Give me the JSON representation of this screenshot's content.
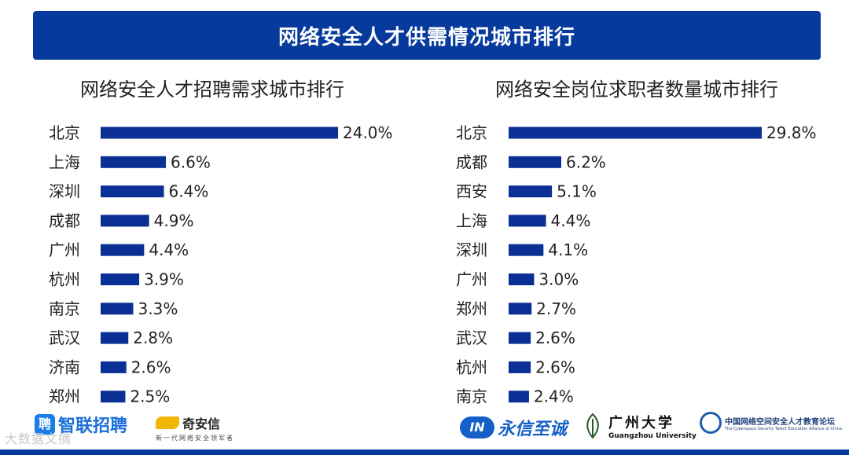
{
  "banner_title": "网络安全人才供需情况城市排行",
  "colors": {
    "bar": "#0a2f95",
    "banner": "#063a9c",
    "text": "#222222"
  },
  "chart_data": [
    {
      "type": "bar",
      "orientation": "horizontal",
      "title": "网络安全人才招聘需求城市排行",
      "categories": [
        "北京",
        "上海",
        "深圳",
        "成都",
        "广州",
        "杭州",
        "南京",
        "武汉",
        "济南",
        "郑州"
      ],
      "values": [
        24.0,
        6.6,
        6.4,
        4.9,
        4.4,
        3.9,
        3.3,
        2.8,
        2.6,
        2.5
      ],
      "value_labels": [
        "24.0%",
        "6.6%",
        "6.4%",
        "4.9%",
        "4.4%",
        "3.9%",
        "3.3%",
        "2.8%",
        "2.6%",
        "2.5%"
      ],
      "xlim": [
        0,
        24.0
      ],
      "grid": false
    },
    {
      "type": "bar",
      "orientation": "horizontal",
      "title": "网络安全岗位求职者数量城市排行",
      "categories": [
        "北京",
        "成都",
        "西安",
        "上海",
        "深圳",
        "广州",
        "郑州",
        "武汉",
        "杭州",
        "南京"
      ],
      "values": [
        29.8,
        6.2,
        5.1,
        4.4,
        4.1,
        3.0,
        2.7,
        2.6,
        2.6,
        2.4
      ],
      "value_labels": [
        "29.8%",
        "6.2%",
        "5.1%",
        "4.4%",
        "4.1%",
        "3.0%",
        "2.7%",
        "2.6%",
        "2.6%",
        "2.4%"
      ],
      "xlim": [
        0,
        29.8
      ],
      "grid": false
    }
  ],
  "logos": {
    "zhaopin": {
      "badge": "聘",
      "name": "智联招聘"
    },
    "qianxin": {
      "mark": "奇安信",
      "tagline": "新一代网络安全领军者"
    },
    "yongxin": {
      "badge": "IN",
      "name": "永信至诚"
    },
    "gzhu": {
      "name": "广州大学",
      "english": "Guangzhou University"
    },
    "alliance": {
      "name": "中国网络空间安全人才教育论坛",
      "english": "The Cyberspace Security Talent Education Alliance of China"
    }
  },
  "watermark": "大数据文摘"
}
